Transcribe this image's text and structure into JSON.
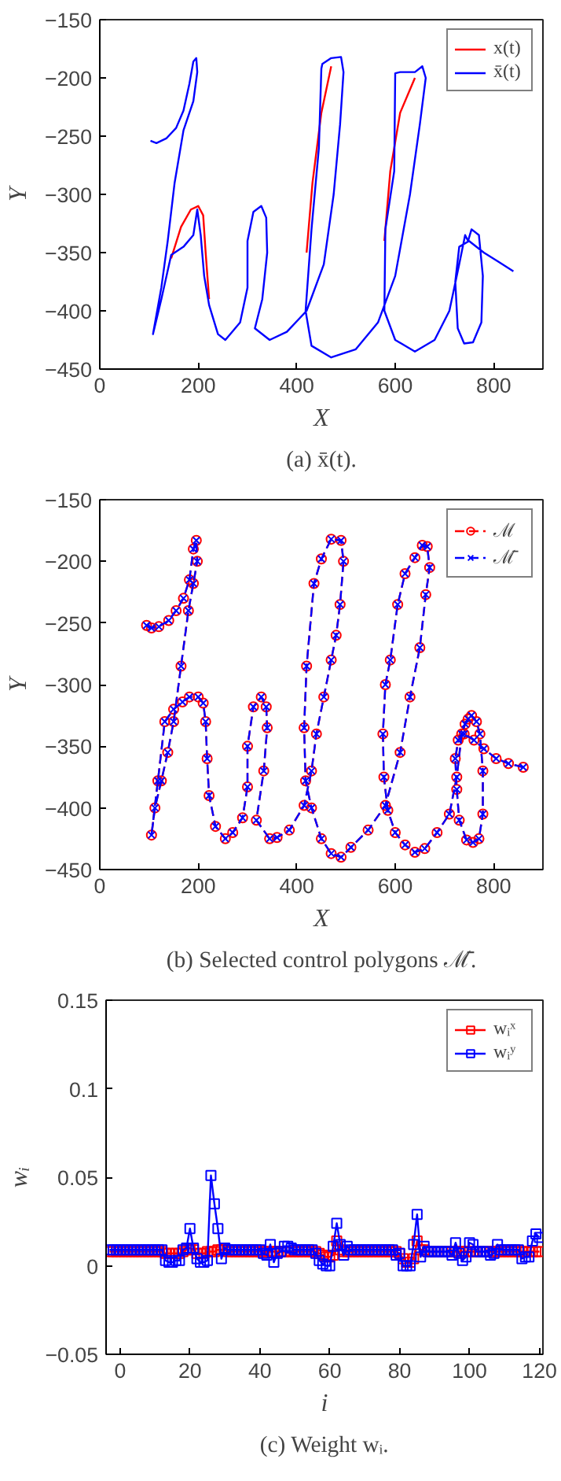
{
  "chart_data": [
    {
      "type": "line",
      "xlabel": "X",
      "ylabel": "Y",
      "annotations": [
        "(a) x̄(t)."
      ],
      "xlim": [
        0,
        900
      ],
      "xticks": [
        0,
        200,
        400,
        600,
        800
      ],
      "ylim": [
        -450,
        -150
      ],
      "yticks": [
        -450,
        -400,
        -350,
        -300,
        -250,
        -200,
        -150
      ],
      "grid": false,
      "legend": "top right",
      "marker": "none",
      "line_style": "solid",
      "series": [
        {
          "name": "x(t)",
          "color": "#ff0000",
          "x": [
            145,
            165,
            185,
            200,
            210,
            215,
            222,
            null,
            470,
            450,
            432,
            420,
            null,
            640,
            610,
            590,
            578
          ],
          "values": [
            -355,
            -328,
            -313,
            -310,
            -318,
            -350,
            -390,
            null,
            -190,
            -230,
            -290,
            -350,
            null,
            -200,
            -230,
            -280,
            -340
          ]
        },
        {
          "name": "x̄(t)",
          "color": "#0000ff",
          "x": [
            103,
            115,
            135,
            155,
            170,
            182,
            190,
            196,
            198,
            190,
            170,
            152,
            138,
            125,
            108,
            125,
            145,
            170,
            190,
            198,
            205,
            212,
            222,
            240,
            255,
            285,
            300,
            300,
            312,
            328,
            338,
            340,
            330,
            315,
            345,
            380,
            420,
            455,
            475,
            488,
            495,
            490,
            470,
            452,
            450,
            445,
            430,
            418,
            430,
            470,
            520,
            565,
            600,
            630,
            650,
            662,
            655,
            640,
            610,
            600,
            598,
            580,
            578,
            600,
            640,
            680,
            710,
            730,
            742,
            748,
            755,
            770,
            778,
            775,
            758,
            740,
            727,
            722,
            730,
            750,
            780,
            810,
            840
          ],
          "values": [
            -254,
            -256,
            -252,
            -243,
            -228,
            -205,
            -186,
            -183,
            -195,
            -220,
            -245,
            -290,
            -340,
            -380,
            -420,
            -390,
            -352,
            -345,
            -335,
            -313,
            -335,
            -370,
            -395,
            -420,
            -425,
            -410,
            -380,
            -340,
            -315,
            -310,
            -320,
            -350,
            -390,
            -415,
            -425,
            -418,
            -400,
            -360,
            -300,
            -240,
            -195,
            -182,
            -183,
            -188,
            -192,
            -260,
            -330,
            -400,
            -430,
            -440,
            -433,
            -410,
            -370,
            -300,
            -240,
            -200,
            -190,
            -195,
            -195,
            -196,
            -280,
            -330,
            -400,
            -425,
            -435,
            -425,
            -400,
            -360,
            -335,
            -340,
            -330,
            -335,
            -370,
            -410,
            -427,
            -428,
            -415,
            -375,
            -345,
            -340,
            -350,
            -358,
            -366
          ]
        }
      ]
    },
    {
      "type": "line",
      "xlabel": "X",
      "ylabel": "Y",
      "annotations": [
        "(b) Selected control polygons ℳ̄."
      ],
      "xlim": [
        0,
        900
      ],
      "xticks": [
        0,
        200,
        400,
        600,
        800
      ],
      "ylim": [
        -450,
        -150
      ],
      "yticks": [
        -450,
        -400,
        -350,
        -300,
        -250,
        -200,
        -150
      ],
      "grid": false,
      "legend": "top right",
      "line_style": "dashed",
      "series": [
        {
          "name": "ℳ",
          "color": "#ff0000",
          "marker": "circle",
          "x": [
            95,
            105,
            120,
            140,
            155,
            170,
            182,
            190,
            196,
            198,
            190,
            180,
            165,
            150,
            138,
            125,
            112,
            105,
            118,
            132,
            150,
            168,
            182,
            200,
            210,
            215,
            218,
            222,
            235,
            255,
            270,
            290,
            300,
            300,
            312,
            328,
            338,
            340,
            333,
            318,
            345,
            360,
            385,
            415,
            430,
            440,
            455,
            470,
            480,
            488,
            495,
            490,
            470,
            450,
            435,
            420,
            415,
            418,
            430,
            450,
            470,
            490,
            510,
            545,
            580,
            610,
            630,
            650,
            662,
            670,
            665,
            655,
            640,
            620,
            605,
            590,
            580,
            575,
            577,
            585,
            600,
            620,
            640,
            660,
            685,
            710,
            725,
            735,
            742,
            748,
            755,
            765,
            772,
            778,
            778,
            770,
            758,
            745,
            730,
            725,
            722,
            728,
            740,
            760,
            780,
            805,
            830,
            860
          ],
          "values": [
            -252,
            -254,
            -253,
            -248,
            -240,
            -230,
            -215,
            -190,
            -183,
            -200,
            -218,
            -240,
            -285,
            -330,
            -355,
            -378,
            -400,
            -422,
            -378,
            -330,
            -320,
            -314,
            -310,
            -310,
            -315,
            -330,
            -360,
            -390,
            -415,
            -425,
            -420,
            -408,
            -383,
            -350,
            -318,
            -310,
            -318,
            -335,
            -370,
            -410,
            -425,
            -424,
            -418,
            -398,
            -370,
            -340,
            -310,
            -280,
            -260,
            -235,
            -200,
            -183,
            -182,
            -198,
            -218,
            -285,
            -335,
            -378,
            -400,
            -425,
            -437,
            -440,
            -432,
            -418,
            -398,
            -355,
            -310,
            -270,
            -227,
            -205,
            -188,
            -187,
            -197,
            -210,
            -235,
            -280,
            -300,
            -340,
            -375,
            -402,
            -420,
            -430,
            -436,
            -433,
            -420,
            -405,
            -375,
            -340,
            -332,
            -328,
            -325,
            -330,
            -340,
            -370,
            -405,
            -425,
            -428,
            -426,
            -410,
            -385,
            -360,
            -345,
            -340,
            -345,
            -352,
            -360,
            -364,
            -367
          ]
        },
        {
          "name": "ℳ̄",
          "color": "#0000ff",
          "marker": "x",
          "x": [
            95,
            105,
            120,
            140,
            155,
            170,
            182,
            190,
            196,
            198,
            190,
            180,
            165,
            150,
            138,
            125,
            112,
            105,
            118,
            132,
            150,
            168,
            182,
            200,
            210,
            215,
            218,
            222,
            235,
            255,
            270,
            290,
            300,
            300,
            312,
            328,
            338,
            340,
            333,
            318,
            345,
            360,
            385,
            415,
            430,
            440,
            455,
            470,
            480,
            488,
            495,
            490,
            470,
            450,
            435,
            420,
            415,
            418,
            430,
            450,
            470,
            490,
            510,
            545,
            580,
            610,
            630,
            650,
            662,
            670,
            665,
            655,
            640,
            620,
            605,
            590,
            580,
            575,
            577,
            585,
            600,
            620,
            640,
            660,
            685,
            710,
            725,
            735,
            742,
            748,
            755,
            765,
            772,
            778,
            778,
            770,
            758,
            745,
            730,
            725,
            722,
            728,
            740,
            760,
            780,
            805,
            830,
            860
          ],
          "values": [
            -252,
            -254,
            -253,
            -248,
            -240,
            -230,
            -215,
            -190,
            -183,
            -200,
            -218,
            -240,
            -285,
            -330,
            -355,
            -378,
            -400,
            -422,
            -378,
            -330,
            -320,
            -314,
            -310,
            -310,
            -315,
            -330,
            -360,
            -390,
            -415,
            -425,
            -420,
            -408,
            -383,
            -350,
            -318,
            -310,
            -318,
            -335,
            -370,
            -410,
            -425,
            -424,
            -418,
            -398,
            -370,
            -340,
            -310,
            -280,
            -260,
            -235,
            -200,
            -183,
            -182,
            -198,
            -218,
            -285,
            -335,
            -378,
            -400,
            -425,
            -437,
            -440,
            -432,
            -418,
            -398,
            -355,
            -310,
            -270,
            -227,
            -205,
            -188,
            -187,
            -197,
            -210,
            -235,
            -280,
            -300,
            -340,
            -375,
            -402,
            -420,
            -430,
            -436,
            -433,
            -420,
            -405,
            -375,
            -340,
            -332,
            -328,
            -325,
            -330,
            -340,
            -370,
            -405,
            -425,
            -428,
            -426,
            -410,
            -385,
            -360,
            -345,
            -340,
            -345,
            -352,
            -360,
            -364,
            -367
          ]
        }
      ]
    },
    {
      "type": "line",
      "xlabel": "i",
      "ylabel": "wᵢ",
      "annotations": [
        "(c) Weight wᵢ."
      ],
      "xlim": [
        -4,
        121
      ],
      "xticks": [
        0,
        20,
        40,
        60,
        80,
        100,
        120
      ],
      "ylim": [
        -0.05,
        0.15
      ],
      "yticks": [
        -0.05,
        0,
        0.05,
        0.1,
        0.15
      ],
      "grid": false,
      "legend": "top right",
      "marker": "square",
      "line_style": "solid",
      "x": [
        -3,
        -2,
        -1,
        0,
        1,
        2,
        3,
        4,
        5,
        6,
        7,
        8,
        9,
        10,
        11,
        12,
        13,
        14,
        15,
        16,
        17,
        18,
        19,
        20,
        21,
        22,
        23,
        24,
        25,
        26,
        27,
        28,
        29,
        30,
        31,
        32,
        33,
        34,
        35,
        36,
        37,
        38,
        39,
        40,
        41,
        42,
        43,
        44,
        45,
        46,
        47,
        48,
        49,
        50,
        51,
        52,
        53,
        54,
        55,
        56,
        57,
        58,
        59,
        60,
        61,
        62,
        63,
        64,
        65,
        66,
        67,
        68,
        69,
        70,
        71,
        72,
        73,
        74,
        75,
        76,
        77,
        78,
        79,
        80,
        81,
        82,
        83,
        84,
        85,
        86,
        87,
        88,
        89,
        90,
        91,
        92,
        93,
        94,
        95,
        96,
        97,
        98,
        99,
        100,
        101,
        102,
        103,
        104,
        105,
        106,
        107,
        108,
        109,
        110,
        111,
        112,
        113,
        114,
        115,
        116,
        117,
        118,
        119,
        120
      ],
      "series": [
        {
          "name": "wᵢˣ",
          "color": "#ff0000",
          "values": [
            0.008,
            0.008,
            0.008,
            0.008,
            0.008,
            0.008,
            0.008,
            0.008,
            0.008,
            0.008,
            0.008,
            0.008,
            0.008,
            0.008,
            0.008,
            0.008,
            0.007,
            0.007,
            0.007,
            0.007,
            0.007,
            0.008,
            0.009,
            0.01,
            0.009,
            0.007,
            0.007,
            0.007,
            0.008,
            0.008,
            0.008,
            0.009,
            0.009,
            0.009,
            0.008,
            0.008,
            0.008,
            0.008,
            0.008,
            0.008,
            0.008,
            0.008,
            0.008,
            0.008,
            0.008,
            0.008,
            0.008,
            0.008,
            0.008,
            0.008,
            0.008,
            0.008,
            0.008,
            0.008,
            0.008,
            0.008,
            0.008,
            0.008,
            0.008,
            0.008,
            0.007,
            0.006,
            0.005,
            0.005,
            0.006,
            0.014,
            0.009,
            0.008,
            0.008,
            0.008,
            0.008,
            0.008,
            0.008,
            0.008,
            0.008,
            0.008,
            0.008,
            0.008,
            0.008,
            0.008,
            0.008,
            0.008,
            0.008,
            0.007,
            0.004,
            0.002,
            0.002,
            0.004,
            0.014,
            0.009,
            0.009,
            0.008,
            0.008,
            0.008,
            0.008,
            0.008,
            0.008,
            0.008,
            0.008,
            0.008,
            0.008,
            0.008,
            0.008,
            0.008,
            0.008,
            0.008,
            0.008,
            0.008,
            0.008,
            0.008,
            0.008,
            0.008,
            0.008,
            0.008,
            0.008,
            0.008,
            0.008,
            0.008,
            0.008,
            0.008,
            0.008,
            0.008,
            0.008,
            0.008
          ]
        },
        {
          "name": "wᵢʸ",
          "color": "#0000ff",
          "values": [
            0.009,
            0.009,
            0.009,
            0.009,
            0.009,
            0.009,
            0.009,
            0.009,
            0.009,
            0.009,
            0.009,
            0.009,
            0.009,
            0.009,
            0.009,
            0.009,
            0.003,
            0.002,
            0.002,
            0.003,
            0.003,
            0.009,
            0.01,
            0.021,
            0.01,
            0.004,
            0.002,
            0.002,
            0.003,
            0.051,
            0.035,
            0.021,
            0.004,
            0.01,
            0.009,
            0.009,
            0.009,
            0.009,
            0.009,
            0.009,
            0.009,
            0.009,
            0.009,
            0.009,
            0.007,
            0.006,
            0.012,
            0.002,
            0.007,
            0.008,
            0.011,
            0.011,
            0.01,
            0.009,
            0.009,
            0.009,
            0.009,
            0.009,
            0.009,
            0.007,
            0.003,
            0.001,
            0.0,
            0.0,
            0.011,
            0.024,
            0.012,
            0.006,
            0.011,
            0.009,
            0.009,
            0.009,
            0.009,
            0.009,
            0.009,
            0.009,
            0.009,
            0.009,
            0.009,
            0.009,
            0.009,
            0.009,
            0.006,
            0.007,
            0.0,
            0.0,
            0.0,
            0.012,
            0.029,
            0.005,
            0.011,
            0.008,
            0.008,
            0.008,
            0.008,
            0.008,
            0.008,
            0.008,
            0.006,
            0.013,
            0.007,
            0.003,
            0.005,
            0.013,
            0.012,
            0.008,
            0.008,
            0.008,
            0.008,
            0.006,
            0.007,
            0.012,
            0.009,
            0.009,
            0.009,
            0.009,
            0.009,
            0.009,
            0.004,
            0.005,
            0.005,
            0.014,
            0.018,
            0.016
          ]
        }
      ]
    }
  ]
}
